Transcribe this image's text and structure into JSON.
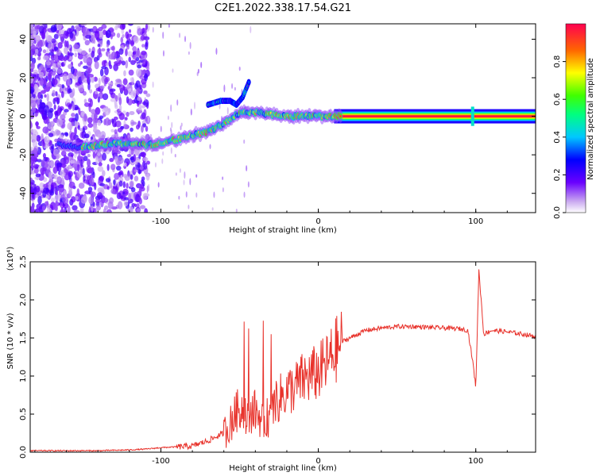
{
  "figure": {
    "title": "C2E1.2022.338.17.54.G21"
  },
  "chart_data": [
    {
      "type": "heatmap",
      "xlabel": "Height of straight line (km)",
      "ylabel": "Frequency (Hz)",
      "xlim": [
        -183,
        138
      ],
      "ylim": [
        -50,
        48
      ],
      "xticks": [
        -100,
        0,
        100
      ],
      "yticks": [
        -40,
        -20,
        0,
        20,
        40
      ],
      "colorbar": {
        "label": "Normalized spectral amplitude",
        "range": [
          0,
          1
        ],
        "ticks": [
          "0.0",
          "0.2",
          "0.4",
          "0.6",
          "0.8"
        ]
      },
      "ridge": {
        "description_points_x": [
          -160,
          -150,
          -140,
          -130,
          -120,
          -110,
          -100,
          -90,
          -80,
          -70,
          -60,
          -50,
          -40,
          -30,
          -20,
          -10,
          0,
          10,
          20,
          40,
          60,
          80,
          100,
          120,
          135
        ],
        "frequency_y": [
          -15,
          -16,
          -15,
          -14,
          -14,
          -15,
          -14,
          -12,
          -10,
          -8,
          -4,
          2,
          2,
          1,
          0,
          0,
          0,
          0,
          0,
          0,
          0,
          0,
          0,
          0,
          0
        ]
      },
      "secondary_branch": {
        "x": [
          -70,
          -62,
          -56,
          -52,
          -48,
          -44
        ],
        "y": [
          6,
          8,
          8,
          6,
          10,
          18
        ]
      }
    },
    {
      "type": "line",
      "xlabel": "Height of straight line (km)",
      "ylabel": "SNR (10 * v/v)",
      "y_multiplier": "(x10⁴)",
      "xlim": [
        -183,
        138
      ],
      "ylim": [
        0,
        2.5
      ],
      "xticks": [
        -100,
        0,
        100
      ],
      "yticks": [
        0.0,
        0.5,
        1.0,
        1.5,
        2.0,
        2.5
      ],
      "series": [
        {
          "color": "#e8322b",
          "x": [
            -183,
            -160,
            -140,
            -120,
            -110,
            -100,
            -90,
            -80,
            -70,
            -60,
            -55,
            -50,
            -45,
            -40,
            -35,
            -30,
            -25,
            -20,
            -15,
            -10,
            -5,
            0,
            5,
            10,
            15,
            20,
            25,
            30,
            40,
            50,
            60,
            70,
            80,
            90,
            95,
            98,
            100,
            102,
            105,
            110,
            120,
            130,
            138
          ],
          "y": [
            0.02,
            0.02,
            0.02,
            0.03,
            0.04,
            0.06,
            0.07,
            0.08,
            0.15,
            0.25,
            0.4,
            0.6,
            0.5,
            0.55,
            0.4,
            0.5,
            0.7,
            0.8,
            0.85,
            0.95,
            1.0,
            1.05,
            1.15,
            1.3,
            1.45,
            1.5,
            1.55,
            1.6,
            1.63,
            1.65,
            1.65,
            1.64,
            1.63,
            1.62,
            1.6,
            1.2,
            0.85,
            2.4,
            1.55,
            1.6,
            1.58,
            1.55,
            1.52
          ]
        }
      ]
    }
  ]
}
